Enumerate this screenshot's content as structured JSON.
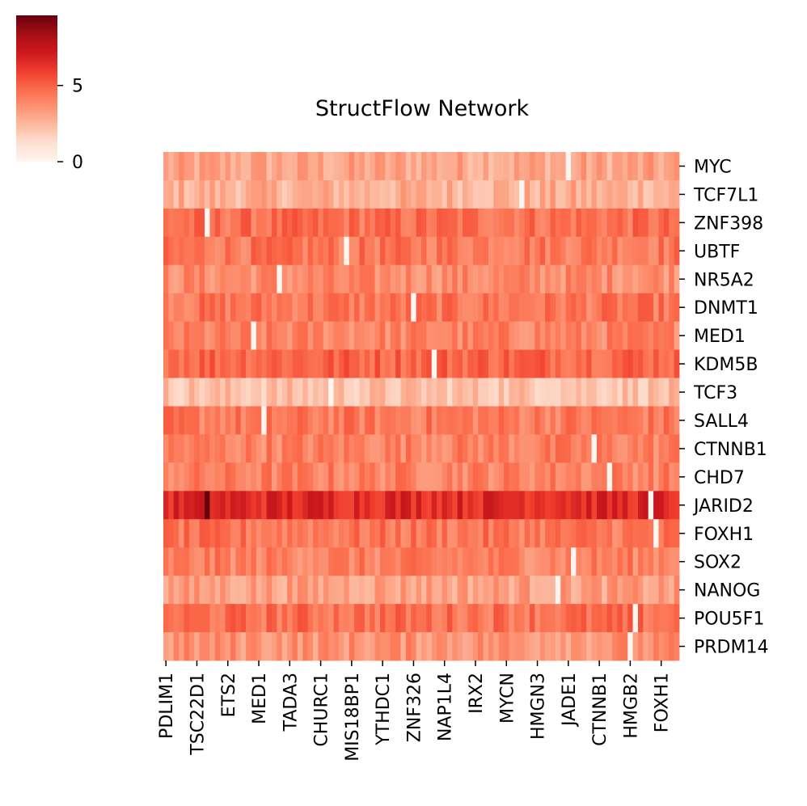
{
  "chart_data": {
    "type": "heatmap",
    "title": "StructFlow Network",
    "colormap": "Reds",
    "color_range": [
      0,
      9.6
    ],
    "colorbar": {
      "ticks": [
        0,
        5
      ],
      "tick_labels": [
        "0",
        "5"
      ]
    },
    "rows": [
      "MYC",
      "TCF7L1",
      "ZNF398",
      "UBTF",
      "NR5A2",
      "DNMT1",
      "MED1",
      "KDM5B",
      "TCF3",
      "SALL4",
      "CTNNB1",
      "CHD7",
      "JARID2",
      "FOXH1",
      "SOX2",
      "NANOG",
      "POU5F1",
      "PRDM14"
    ],
    "row_base_values": [
      3.0,
      2.7,
      4.6,
      4.4,
      3.8,
      4.4,
      4.0,
      5.0,
      2.2,
      4.3,
      4.1,
      4.1,
      6.6,
      4.4,
      4.1,
      3.2,
      4.6,
      3.6
    ],
    "n_columns": 100,
    "column_tick_labels": [
      "PDLIM1",
      "TSC22D1",
      "ETS2",
      "MED1",
      "TADA3",
      "CHURC1",
      "MIS18BP1",
      "YTHDC1",
      "ZNF326",
      "NAP1L4",
      "IRX2",
      "MYCN",
      "HMGN3",
      "JADE1",
      "CTNNB1",
      "HMGB2",
      "FOXH1"
    ],
    "column_tick_positions": [
      0,
      6,
      12,
      18,
      24,
      30,
      36,
      42,
      48,
      54,
      60,
      66,
      72,
      78,
      84,
      90,
      96
    ],
    "zero_cells": [
      {
        "row": "MYC",
        "col": 78
      },
      {
        "row": "TCF7L1",
        "col": 69
      },
      {
        "row": "ZNF398",
        "col": 8
      },
      {
        "row": "UBTF",
        "col": 35
      },
      {
        "row": "NR5A2",
        "col": 22
      },
      {
        "row": "DNMT1",
        "col": 48
      },
      {
        "row": "MED1",
        "col": 17
      },
      {
        "row": "KDM5B",
        "col": 52
      },
      {
        "row": "TCF3",
        "col": 32
      },
      {
        "row": "SALL4",
        "col": 19
      },
      {
        "row": "CTNNB1",
        "col": 83
      },
      {
        "row": "CHD7",
        "col": 86
      },
      {
        "row": "JARID2",
        "col": 94
      },
      {
        "row": "FOXH1",
        "col": 95
      },
      {
        "row": "SOX2",
        "col": 79
      },
      {
        "row": "NANOG",
        "col": 76
      },
      {
        "row": "POU5F1",
        "col": 91
      },
      {
        "row": "PRDM14",
        "col": 90
      }
    ],
    "peak_cell": {
      "row": "JARID2",
      "col": 8,
      "value": 9.6
    }
  }
}
